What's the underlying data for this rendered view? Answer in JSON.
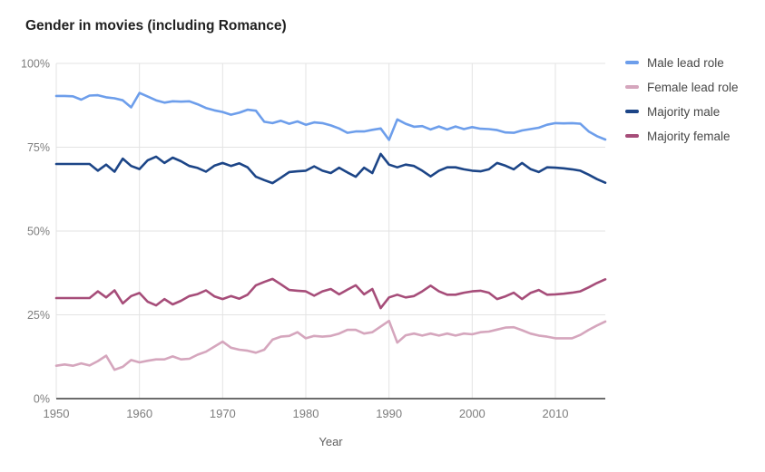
{
  "title": "Gender in movies (including Romance)",
  "legend": {
    "items": [
      {
        "label": "Male lead role",
        "color": "#6d9eeb"
      },
      {
        "label": "Female lead role",
        "color": "#d5a6bd"
      },
      {
        "label": "Majority male",
        "color": "#1c4587"
      },
      {
        "label": "Majority female",
        "color": "#a64d79"
      }
    ]
  },
  "axes": {
    "xlabel": "Year",
    "y_tick_labels": [
      "0%",
      "25%",
      "50%",
      "75%",
      "100%"
    ],
    "x_tick_labels": [
      "1950",
      "1960",
      "1970",
      "1980",
      "1990",
      "2000",
      "2010"
    ]
  },
  "colors": {
    "grid": "#e3e3e3",
    "axis_line": "#3c3c3c",
    "tick_label": "#7d7d7d",
    "axis_title": "#616161",
    "title": "#212121",
    "background": "#ffffff"
  },
  "chart_data": {
    "type": "line",
    "title": "Gender in movies (including Romance)",
    "xlabel": "Year",
    "ylabel": "",
    "xlim": [
      1950,
      2016
    ],
    "ylim": [
      0,
      100
    ],
    "grid": true,
    "legend_position": "right",
    "y_ticks": [
      0,
      25,
      50,
      75,
      100
    ],
    "y_tick_labels": [
      "0%",
      "25%",
      "50%",
      "75%",
      "100%"
    ],
    "x_ticks": [
      1950,
      1960,
      1970,
      1980,
      1990,
      2000,
      2010
    ],
    "x": [
      1950,
      1951,
      1952,
      1953,
      1954,
      1955,
      1956,
      1957,
      1958,
      1959,
      1960,
      1961,
      1962,
      1963,
      1964,
      1965,
      1966,
      1967,
      1968,
      1969,
      1970,
      1971,
      1972,
      1973,
      1974,
      1975,
      1976,
      1977,
      1978,
      1979,
      1980,
      1981,
      1982,
      1983,
      1984,
      1985,
      1986,
      1987,
      1988,
      1989,
      1990,
      1991,
      1992,
      1993,
      1994,
      1995,
      1996,
      1997,
      1998,
      1999,
      2000,
      2001,
      2002,
      2003,
      2004,
      2005,
      2006,
      2007,
      2008,
      2009,
      2010,
      2011,
      2012,
      2013,
      2014,
      2015,
      2016
    ],
    "series": [
      {
        "name": "Male lead role",
        "color": "#6d9eeb",
        "values": [
          90.3,
          90.3,
          90.2,
          89.2,
          90.4,
          90.5,
          89.9,
          89.6,
          89.0,
          86.9,
          91.2,
          90.1,
          89.0,
          88.3,
          88.7,
          88.6,
          88.7,
          87.8,
          86.7,
          86.0,
          85.5,
          84.7,
          85.3,
          86.2,
          85.9,
          82.6,
          82.2,
          82.9,
          82.0,
          82.7,
          81.7,
          82.4,
          82.2,
          81.5,
          80.6,
          79.3,
          79.7,
          79.7,
          80.2,
          80.6,
          77.2,
          83.3,
          82.0,
          81.1,
          81.3,
          80.3,
          81.2,
          80.3,
          81.2,
          80.4,
          81.0,
          80.5,
          80.4,
          80.1,
          79.4,
          79.3,
          80.0,
          80.4,
          80.8,
          81.7,
          82.2,
          82.1,
          82.2,
          82.0,
          79.7,
          78.3,
          77.3
        ]
      },
      {
        "name": "Female lead role",
        "color": "#d5a6bd",
        "values": [
          9.8,
          10.2,
          9.8,
          10.5,
          9.9,
          11.2,
          12.8,
          8.6,
          9.5,
          11.5,
          10.8,
          11.3,
          11.7,
          11.7,
          12.6,
          11.7,
          11.9,
          13.1,
          14.0,
          15.5,
          17.0,
          15.2,
          14.6,
          14.3,
          13.7,
          14.6,
          17.6,
          18.5,
          18.7,
          19.8,
          18.0,
          18.7,
          18.5,
          18.7,
          19.4,
          20.5,
          20.5,
          19.4,
          19.8,
          21.5,
          23.2,
          16.7,
          18.9,
          19.4,
          18.8,
          19.4,
          18.8,
          19.4,
          18.8,
          19.4,
          19.2,
          19.8,
          20.0,
          20.6,
          21.2,
          21.3,
          20.4,
          19.4,
          18.8,
          18.5,
          18.0,
          18.0,
          18.0,
          19.0,
          20.5,
          21.8,
          23.0
        ]
      },
      {
        "name": "Majority male",
        "color": "#1c4587",
        "values": [
          70.0,
          70.0,
          70.0,
          70.0,
          70.0,
          68.0,
          69.8,
          67.7,
          71.6,
          69.4,
          68.5,
          71.1,
          72.2,
          70.3,
          71.9,
          70.8,
          69.4,
          68.8,
          67.7,
          69.5,
          70.3,
          69.4,
          70.2,
          69.0,
          66.2,
          65.2,
          64.3,
          65.9,
          67.6,
          67.8,
          68.0,
          69.3,
          68.0,
          67.3,
          68.9,
          67.5,
          66.2,
          68.9,
          67.3,
          73.0,
          69.8,
          69.0,
          69.8,
          69.4,
          68.0,
          66.3,
          68.0,
          69.0,
          69.0,
          68.4,
          68.0,
          67.8,
          68.4,
          70.3,
          69.5,
          68.4,
          70.3,
          68.5,
          67.6,
          69.0,
          68.9,
          68.7,
          68.4,
          68.0,
          66.8,
          65.5,
          64.4
        ]
      },
      {
        "name": "Majority female",
        "color": "#a64d79",
        "values": [
          30.0,
          30.0,
          30.0,
          30.0,
          30.0,
          32.0,
          30.2,
          32.3,
          28.4,
          30.6,
          31.5,
          28.9,
          27.8,
          29.7,
          28.1,
          29.2,
          30.6,
          31.2,
          32.3,
          30.5,
          29.7,
          30.6,
          29.8,
          31.0,
          33.8,
          34.8,
          35.7,
          34.1,
          32.4,
          32.2,
          32.0,
          30.7,
          32.0,
          32.7,
          31.1,
          32.5,
          33.8,
          31.1,
          32.7,
          27.0,
          30.2,
          31.0,
          30.2,
          30.6,
          32.0,
          33.7,
          32.0,
          31.0,
          31.0,
          31.6,
          32.0,
          32.2,
          31.6,
          29.7,
          30.5,
          31.6,
          29.7,
          31.5,
          32.4,
          31.0,
          31.1,
          31.3,
          31.6,
          32.0,
          33.2,
          34.5,
          35.6
        ]
      }
    ]
  }
}
